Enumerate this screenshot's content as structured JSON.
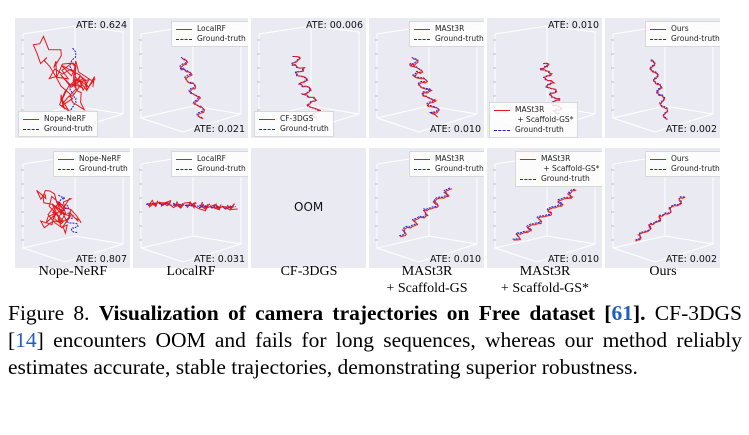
{
  "figure": {
    "columns": [
      "Nope-NeRF",
      "LocalRF",
      "CF-3DGS",
      "MASt3R\n+ Scaffold-GS",
      "MASt3R\n+ Scaffold-GS*",
      "Ours"
    ],
    "column_lines": [
      [
        "Nope-NeRF"
      ],
      [
        "LocalRF"
      ],
      [
        "CF-3DGS"
      ],
      [
        "MASt3R",
        "+ Scaffold-GS"
      ],
      [
        "MASt3R",
        "+ Scaffold-GS*"
      ],
      [
        "Ours"
      ]
    ],
    "rows": [
      [
        {
          "ate": "ATE: 0.624",
          "legend": [
            "Nope-NeRF",
            "Ground-truth"
          ]
        },
        {
          "ate": "ATE: 0.021",
          "legend": [
            "LocalRF",
            "Ground-truth"
          ]
        },
        {
          "ate": "ATE: 00.006",
          "legend": [
            "CF-3DGS",
            "Ground-truth"
          ]
        },
        {
          "ate": "ATE: 0.010",
          "legend": [
            "MASt3R",
            "Ground-truth"
          ]
        },
        {
          "ate": "ATE: 0.010",
          "legend": [
            "MASt3R\n + Scaffold-GS*",
            "Ground-truth"
          ]
        },
        {
          "ate": "ATE: 0.002",
          "legend": [
            "Ours",
            "Ground-truth"
          ]
        }
      ],
      [
        {
          "ate": "ATE: 0.807",
          "legend": [
            "Nope-NeRF",
            "Ground-truth"
          ]
        },
        {
          "ate": "ATE: 0.031",
          "legend": [
            "LocalRF",
            "Ground-truth"
          ]
        },
        {
          "ate": "",
          "oom": "OOM",
          "legend": []
        },
        {
          "ate": "ATE: 0.010",
          "legend": [
            "MASt3R",
            "Ground-truth"
          ]
        },
        {
          "ate": "ATE: 0.010",
          "legend": [
            "MASt3R\n + Scaffold-GS*",
            "Ground-truth"
          ]
        },
        {
          "ate": "ATE: 0.002",
          "legend": [
            "Ours",
            "Ground-truth"
          ]
        }
      ]
    ],
    "colors": {
      "estimate": "#e41a1c",
      "ground_truth": "#1f1fd6",
      "panel_bg": "#eaeaf2",
      "citation": "#1f5fbf"
    }
  },
  "caption": {
    "label": "Figure 8.",
    "title": "Visualization of camera trajectories on Free dataset [",
    "title_ref": "61",
    "title_end": "].",
    "text1": " CF-3DGS [",
    "text_ref": "14",
    "text2": "] encounters OOM and fails for long sequences, whereas our method reliably estimates accurate, stable trajectories, demonstrating superior robustness."
  }
}
